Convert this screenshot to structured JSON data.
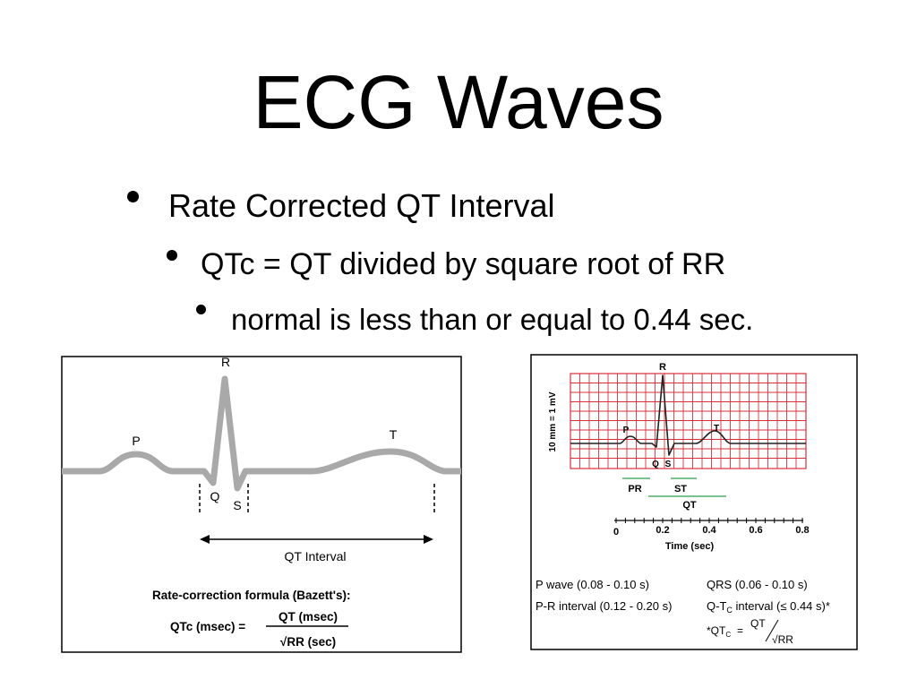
{
  "title": "ECG Waves",
  "bullets": [
    {
      "text": "Rate Corrected QT Interval",
      "level": 1
    },
    {
      "text": "QTc = QT divided by square root of RR",
      "level": 2
    },
    {
      "text": "normal is less than or equal to 0.44 sec.",
      "level": 3
    }
  ],
  "left_figure": {
    "wave_labels": {
      "p": "P",
      "q": "Q",
      "r": "R",
      "s": "S",
      "t": "T"
    },
    "interval_label": "QT Interval",
    "formula_heading": "Rate-correction formula (Bazett's):",
    "formula_lhs": "QTc (msec) =",
    "formula_numerator": "QT (msec)",
    "formula_denominator": "√RR (sec)"
  },
  "right_figure": {
    "y_axis_label": "10 mm = 1 mV",
    "wave_labels": {
      "p": "P",
      "q": "Q",
      "r": "R",
      "s": "S",
      "t": "T"
    },
    "segment_labels": {
      "pr": "PR",
      "st": "ST",
      "qt": "QT"
    },
    "time_axis": {
      "ticks": [
        "0",
        "0.2",
        "0.4",
        "0.6",
        "0.8"
      ],
      "label": "Time (sec)"
    },
    "legend": [
      "P wave (0.08 - 0.10 s)",
      "QRS (0.06 - 0.10 s)",
      "P-R interval (0.12 - 0.20 s)",
      "Q-T",
      "C",
      " interval (≤ 0.44 s)*"
    ],
    "footnote": {
      "lhs": "*QT",
      "sub": "C",
      "eq": "=",
      "num": "QT",
      "den": "√RR"
    }
  },
  "colors": {
    "grid": "#d9303b",
    "trace_left": "#a8a8a8",
    "trace_right": "#222222"
  }
}
